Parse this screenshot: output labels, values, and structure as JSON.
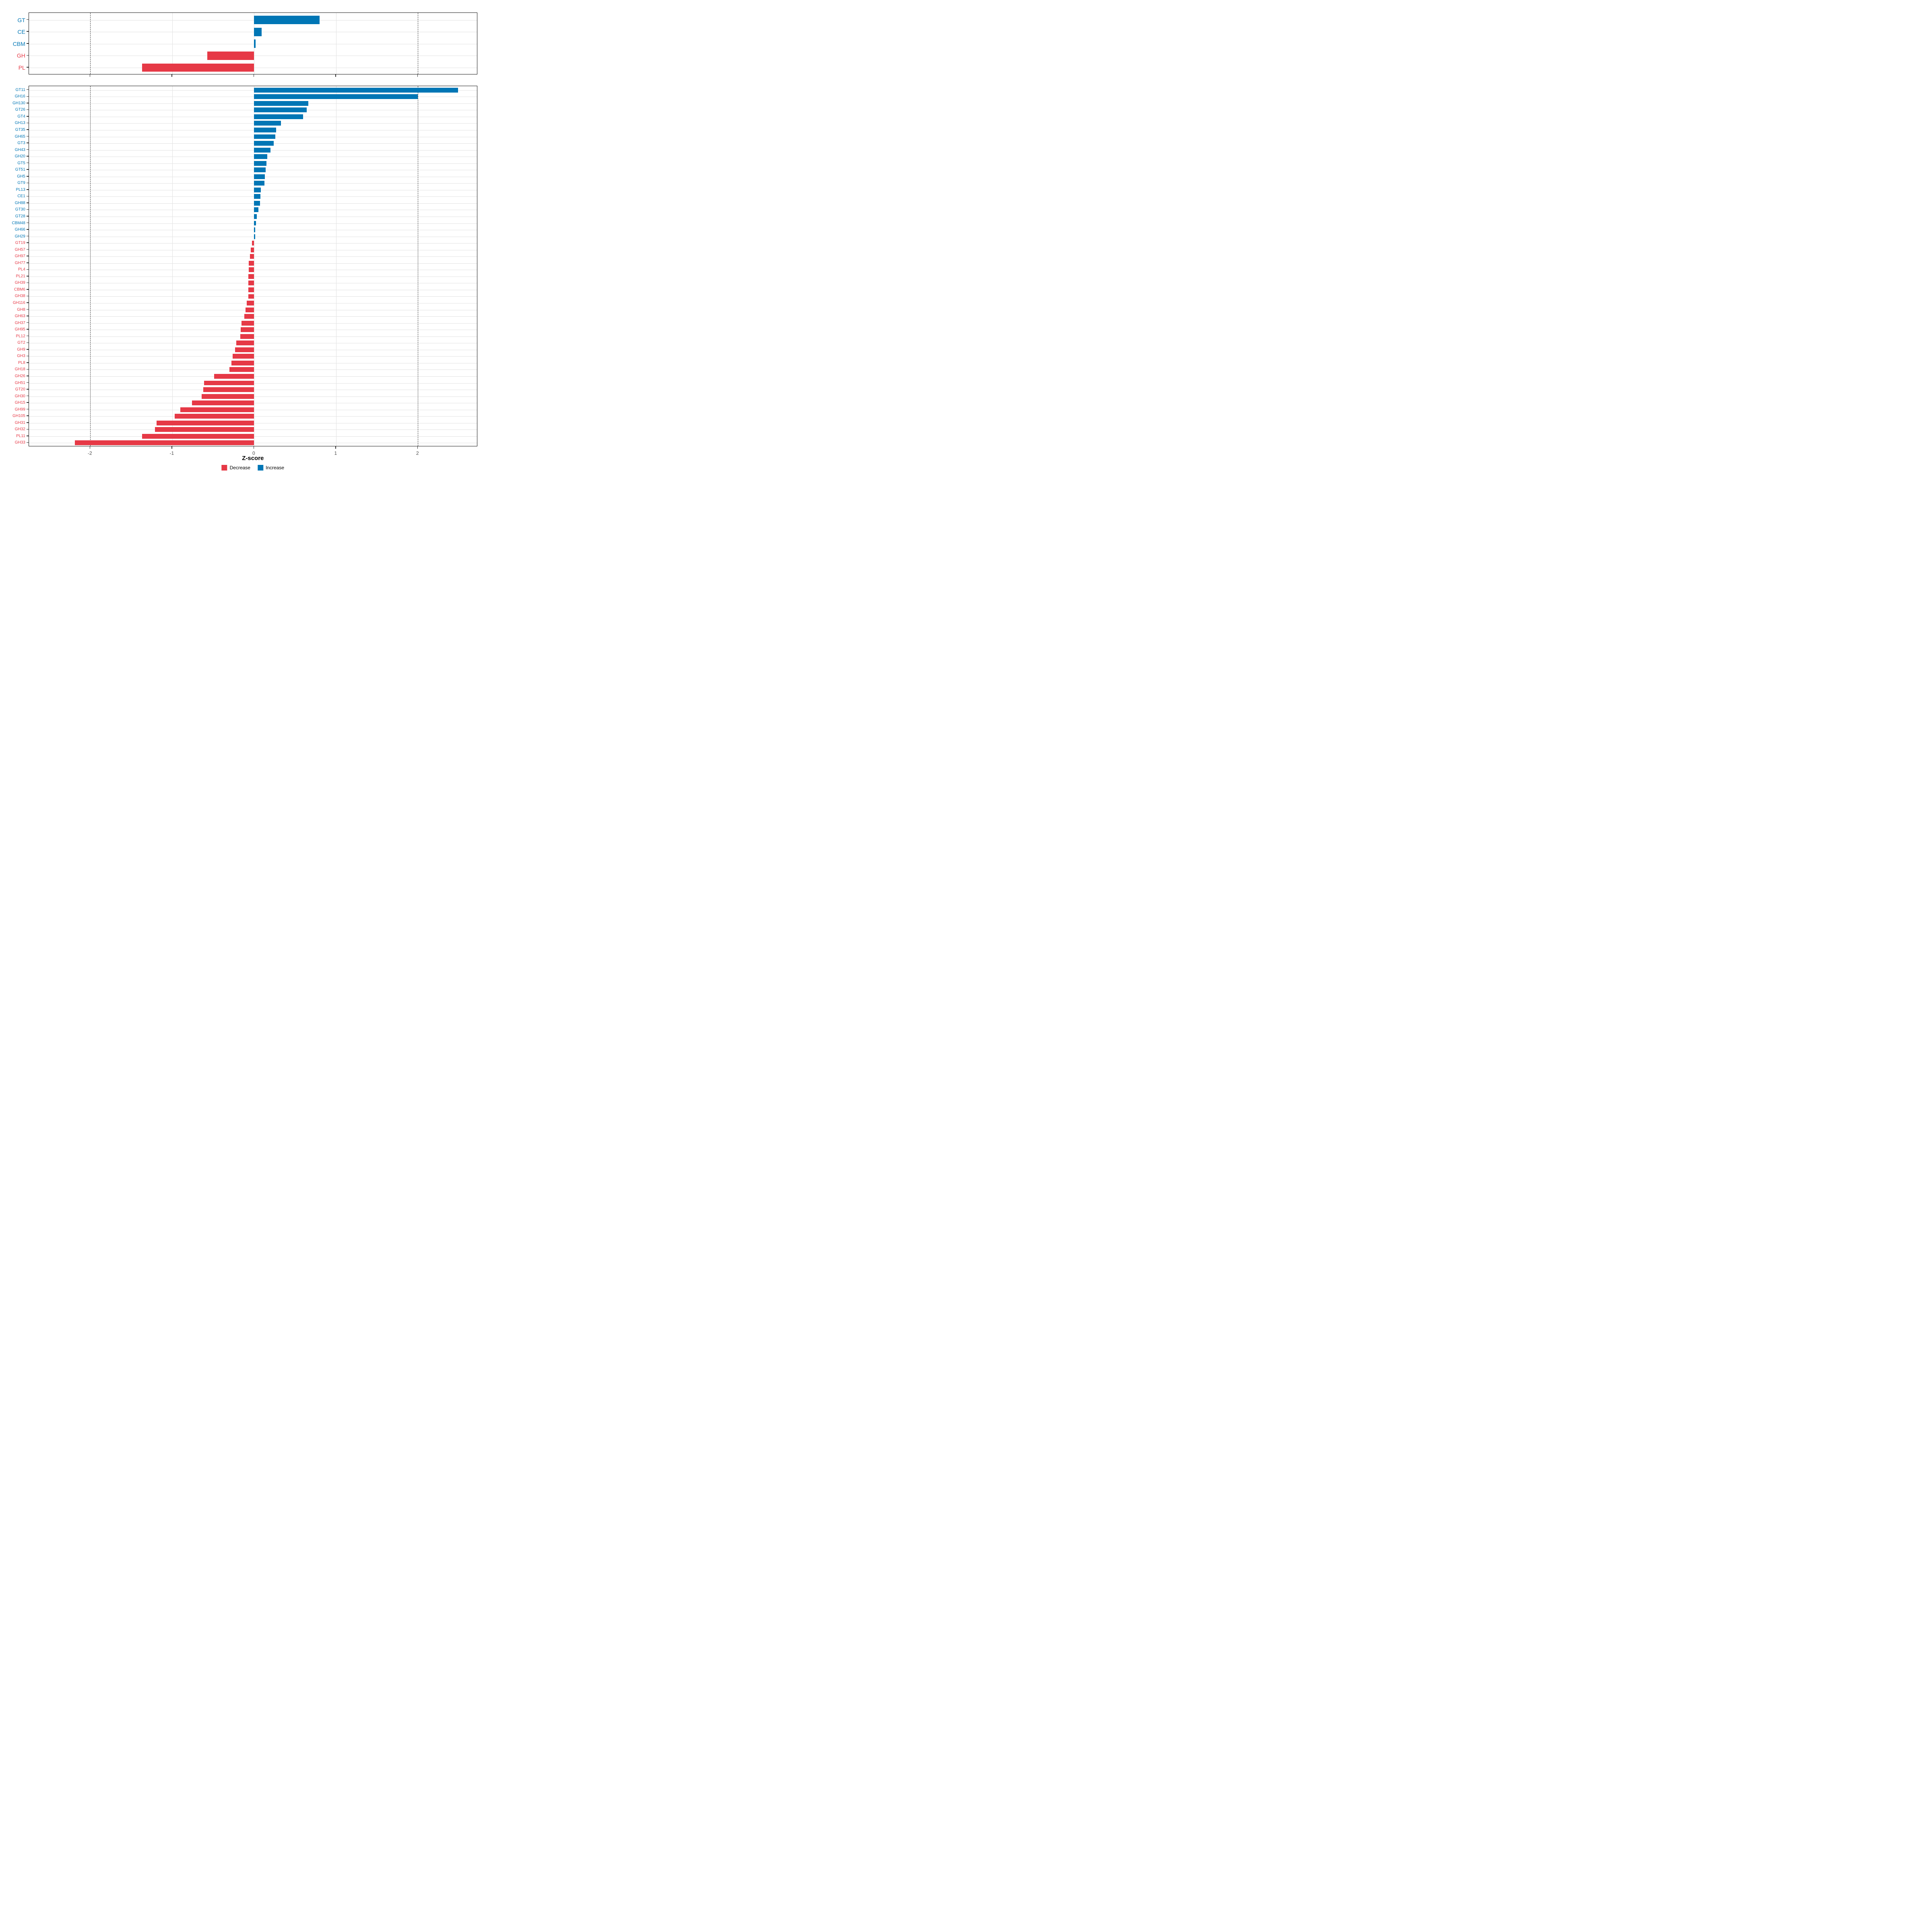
{
  "axis": {
    "label": "Z-score",
    "tick_values": [
      -2,
      -1,
      0,
      1,
      2
    ],
    "tick_labels": [
      "-2",
      "-1",
      "0",
      "1",
      "2"
    ],
    "range": [
      -2.75,
      2.73
    ],
    "dashed_lines": [
      -2,
      2
    ],
    "grid": "on"
  },
  "legend": {
    "decrease": "Decrease",
    "increase": "Increase",
    "position": "bottom"
  },
  "colors": {
    "increase": "#0076B5",
    "decrease": "#E63946",
    "grid": "#E2E2E2",
    "dashed_line": "#3F3F3F",
    "panel_border": "#1A1A1A",
    "tick": "#333333",
    "tick_label_text": "#4D4D4D"
  },
  "chart_data": [
    {
      "type": "bar",
      "orientation": "horizontal",
      "panel": "top",
      "title": "",
      "xlabel": "Z-score",
      "ylabel": "",
      "xlim": [
        -2.75,
        2.73
      ],
      "categories": [
        "GT",
        "CE",
        "CBM",
        "GH",
        "PL"
      ],
      "values": [
        0.8,
        0.09,
        0.02,
        -0.57,
        -1.37
      ]
    },
    {
      "type": "bar",
      "orientation": "horizontal",
      "panel": "bottom",
      "title": "",
      "xlabel": "Z-score",
      "ylabel": "",
      "xlim": [
        -2.75,
        2.73
      ],
      "categories": [
        "GT11",
        "GH16",
        "GH130",
        "GT26",
        "GT4",
        "GH13",
        "GT35",
        "GH65",
        "GT3",
        "GH43",
        "GH20",
        "GT5",
        "GT51",
        "GH5",
        "GT9",
        "PL13",
        "CE1",
        "GH88",
        "GT30",
        "GT28",
        "CBM48",
        "GH66",
        "GH29",
        "GT19",
        "GH57",
        "GH97",
        "GH77",
        "PL4",
        "PL21",
        "GH39",
        "CBM6",
        "GH38",
        "GH116",
        "GH8",
        "GH63",
        "GH37",
        "GH95",
        "PL12",
        "GT2",
        "GH9",
        "GH3",
        "PL8",
        "GH18",
        "GH26",
        "GH51",
        "GT20",
        "GH30",
        "GH15",
        "GH99",
        "GH105",
        "GH31",
        "GH32",
        "PL11",
        "GH33"
      ],
      "values": [
        2.49,
        2.0,
        0.66,
        0.64,
        0.6,
        0.33,
        0.27,
        0.26,
        0.24,
        0.2,
        0.16,
        0.15,
        0.14,
        0.13,
        0.125,
        0.082,
        0.078,
        0.07,
        0.05,
        0.034,
        0.024,
        0.013,
        0.011,
        -0.027,
        -0.043,
        -0.052,
        -0.065,
        -0.066,
        -0.068,
        -0.069,
        -0.069,
        -0.07,
        -0.09,
        -0.103,
        -0.12,
        -0.155,
        -0.165,
        -0.17,
        -0.22,
        -0.235,
        -0.26,
        -0.275,
        -0.3,
        -0.49,
        -0.61,
        -0.62,
        -0.64,
        -0.76,
        -0.9,
        -0.97,
        -1.19,
        -1.21,
        -1.37,
        -2.19
      ]
    }
  ]
}
